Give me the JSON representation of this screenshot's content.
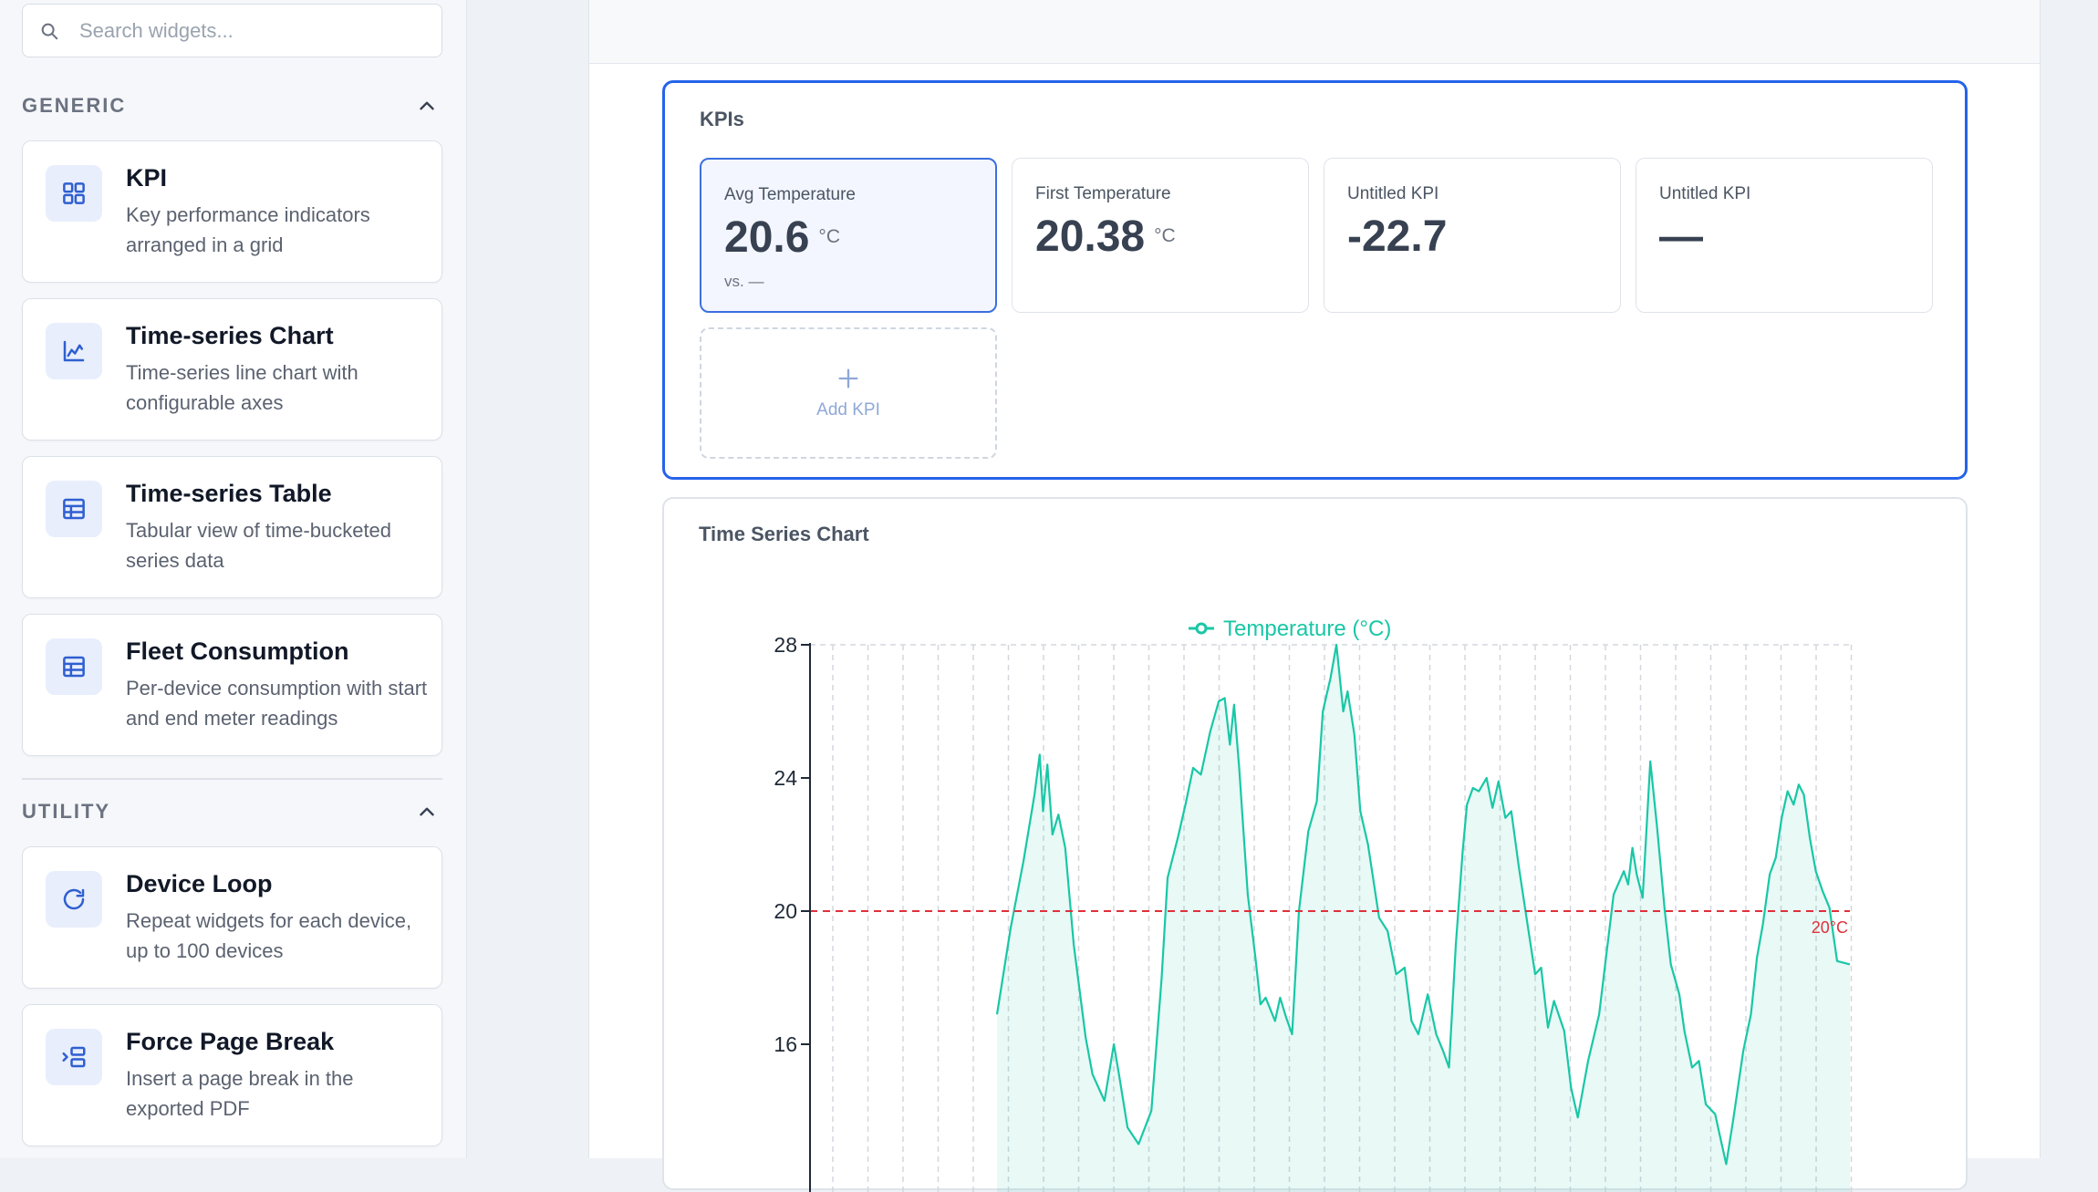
{
  "search": {
    "placeholder": "Search widgets..."
  },
  "sidebar": {
    "sections": [
      {
        "title": "GENERIC",
        "items": [
          {
            "title": "KPI",
            "description": "Key performance indicators arranged in a grid",
            "icon": "grid-icon"
          },
          {
            "title": "Time-series Chart",
            "description": "Time-series line chart with configurable axes",
            "icon": "line-chart-icon"
          },
          {
            "title": "Time-series Table",
            "description": "Tabular view of time-bucketed series data",
            "icon": "table-icon"
          },
          {
            "title": "Fleet Consumption",
            "description": "Per-device consumption with start and end meter readings",
            "icon": "table-icon"
          }
        ]
      },
      {
        "title": "UTILITY",
        "items": [
          {
            "title": "Device Loop",
            "description": "Repeat widgets for each device, up to 100 devices",
            "icon": "refresh-icon"
          },
          {
            "title": "Force Page Break",
            "description": "Insert a page break in the exported PDF",
            "icon": "page-break-icon"
          }
        ]
      }
    ]
  },
  "kpi_panel": {
    "title": "KPIs",
    "tiles": [
      {
        "label": "Avg Temperature",
        "value": "20.6",
        "unit": "°C",
        "sub": "vs. —",
        "selected": true
      },
      {
        "label": "First Temperature",
        "value": "20.38",
        "unit": "°C",
        "sub": "",
        "selected": false
      },
      {
        "label": "Untitled KPI",
        "value": "-22.7",
        "unit": "",
        "sub": "",
        "selected": false
      },
      {
        "label": "Untitled KPI",
        "value": "—",
        "unit": "",
        "sub": "",
        "selected": false
      }
    ],
    "add_label": "Add KPI"
  },
  "chart_panel": {
    "title": "Time Series Chart"
  },
  "colors": {
    "accent": "#2563eb",
    "series": "#19c7a6",
    "threshold": "#e0313b"
  },
  "chart_data": {
    "type": "area",
    "title": "",
    "legend": "top-center",
    "xlabel": "",
    "ylabel": "",
    "ylim": [
      12,
      28
    ],
    "yticks": [
      28,
      24,
      20,
      16
    ],
    "grid": "vertical dashed",
    "threshold": {
      "value": 20,
      "label": "20°C"
    },
    "series": [
      {
        "name": "Temperature (°C)",
        "x_range": [
          0,
          100
        ],
        "points": [
          [
            0,
            16.9
          ],
          [
            1.6,
            19.5
          ],
          [
            3.1,
            21.5
          ],
          [
            4.4,
            23.5
          ],
          [
            5.0,
            24.7
          ],
          [
            5.4,
            23.0
          ],
          [
            5.9,
            24.4
          ],
          [
            6.5,
            22.3
          ],
          [
            7.2,
            22.9
          ],
          [
            8.0,
            21.9
          ],
          [
            9.0,
            19.0
          ],
          [
            10.4,
            16.2
          ],
          [
            11.2,
            15.1
          ],
          [
            12.6,
            14.3
          ],
          [
            13.7,
            16.0
          ],
          [
            14.3,
            15.1
          ],
          [
            15.3,
            13.5
          ],
          [
            16.6,
            13.0
          ],
          [
            18.1,
            14.0
          ],
          [
            19.3,
            18.0
          ],
          [
            20.0,
            21.0
          ],
          [
            21.2,
            22.2
          ],
          [
            22.1,
            23.2
          ],
          [
            23.0,
            24.3
          ],
          [
            23.9,
            24.1
          ],
          [
            25.0,
            25.4
          ],
          [
            26.0,
            26.3
          ],
          [
            26.7,
            26.4
          ],
          [
            27.3,
            25.0
          ],
          [
            27.8,
            26.2
          ],
          [
            28.4,
            24.3
          ],
          [
            29.4,
            20.5
          ],
          [
            30.3,
            18.6
          ],
          [
            30.9,
            17.2
          ],
          [
            31.5,
            17.4
          ],
          [
            32.6,
            16.7
          ],
          [
            33.2,
            17.4
          ],
          [
            33.9,
            16.8
          ],
          [
            34.6,
            16.3
          ],
          [
            35.4,
            20.0
          ],
          [
            36.5,
            22.4
          ],
          [
            37.5,
            23.3
          ],
          [
            38.2,
            26.0
          ],
          [
            39.1,
            27.0
          ],
          [
            39.8,
            28.0
          ],
          [
            40.6,
            26.0
          ],
          [
            41.1,
            26.6
          ],
          [
            41.9,
            25.3
          ],
          [
            42.6,
            23.0
          ],
          [
            43.5,
            22.0
          ],
          [
            44.8,
            19.8
          ],
          [
            45.8,
            19.4
          ],
          [
            46.8,
            18.1
          ],
          [
            47.8,
            18.3
          ],
          [
            48.6,
            16.7
          ],
          [
            49.4,
            16.3
          ],
          [
            50.5,
            17.5
          ],
          [
            51.5,
            16.3
          ],
          [
            52.3,
            15.8
          ],
          [
            53.0,
            15.3
          ],
          [
            53.8,
            19.0
          ],
          [
            54.6,
            21.8
          ],
          [
            55.1,
            23.2
          ],
          [
            55.8,
            23.7
          ],
          [
            56.5,
            23.6
          ],
          [
            57.4,
            24.0
          ],
          [
            58.1,
            23.1
          ],
          [
            58.8,
            23.9
          ],
          [
            59.6,
            22.8
          ],
          [
            60.3,
            23.0
          ],
          [
            61.2,
            21.3
          ],
          [
            62.2,
            19.6
          ],
          [
            63.1,
            18.1
          ],
          [
            63.8,
            18.3
          ],
          [
            64.6,
            16.5
          ],
          [
            65.3,
            17.3
          ],
          [
            66.5,
            16.4
          ],
          [
            67.3,
            14.7
          ],
          [
            68.1,
            13.8
          ],
          [
            69.3,
            15.5
          ],
          [
            70.6,
            16.9
          ],
          [
            71.4,
            18.6
          ],
          [
            72.3,
            20.5
          ],
          [
            73.5,
            21.2
          ],
          [
            74.0,
            20.8
          ],
          [
            74.5,
            21.9
          ],
          [
            75.0,
            21.1
          ],
          [
            75.7,
            20.4
          ],
          [
            76.6,
            24.5
          ],
          [
            77.4,
            22.5
          ],
          [
            78.3,
            20.0
          ],
          [
            79.0,
            18.4
          ],
          [
            80.0,
            17.5
          ],
          [
            80.6,
            16.4
          ],
          [
            81.5,
            15.3
          ],
          [
            82.3,
            15.5
          ],
          [
            83.1,
            14.2
          ],
          [
            84.2,
            13.9
          ],
          [
            84.8,
            13.2
          ],
          [
            85.5,
            12.4
          ],
          [
            86.3,
            13.7
          ],
          [
            87.5,
            15.8
          ],
          [
            88.4,
            16.9
          ],
          [
            89.1,
            18.6
          ],
          [
            89.8,
            19.6
          ],
          [
            90.6,
            21.1
          ],
          [
            91.3,
            21.6
          ],
          [
            92.0,
            22.8
          ],
          [
            92.7,
            23.6
          ],
          [
            93.4,
            23.2
          ],
          [
            94.0,
            23.8
          ],
          [
            94.6,
            23.5
          ],
          [
            95.3,
            22.2
          ],
          [
            96.0,
            21.2
          ],
          [
            96.8,
            20.6
          ],
          [
            97.6,
            20.1
          ],
          [
            98.5,
            18.5
          ],
          [
            100,
            18.4
          ]
        ]
      }
    ]
  }
}
